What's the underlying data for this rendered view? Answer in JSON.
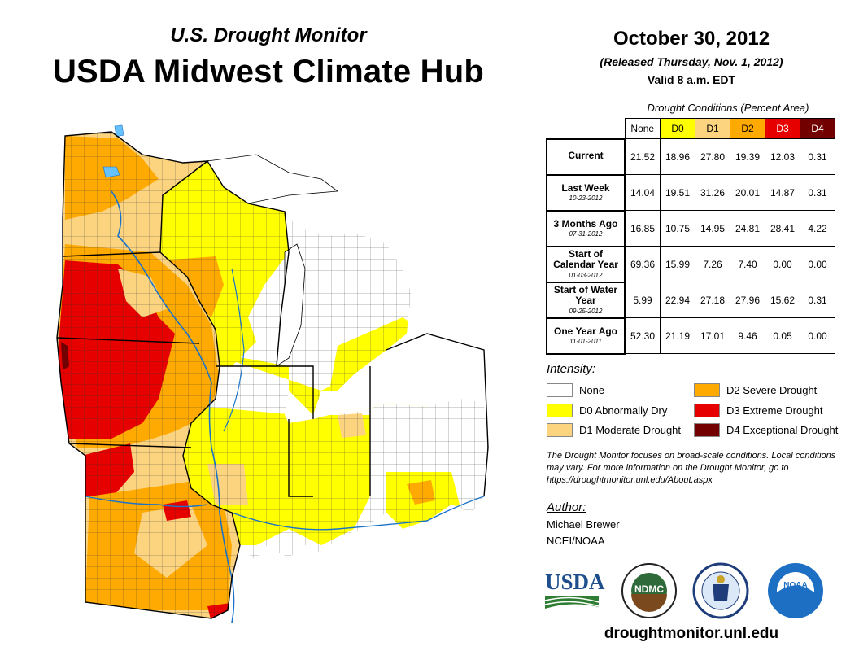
{
  "header": {
    "subtitle": "U.S. Drought Monitor",
    "title": "USDA Midwest Climate Hub",
    "date": "October 30, 2012",
    "released": "(Released Thursday, Nov. 1, 2012)",
    "valid": "Valid 8 a.m. EDT"
  },
  "table": {
    "caption": "Drought Conditions (Percent Area)",
    "columns": [
      "None",
      "D0",
      "D1",
      "D2",
      "D3",
      "D4"
    ],
    "column_colors": [
      "#ffffff",
      "#ffff00",
      "#fcd37f",
      "#ffaa00",
      "#e60000",
      "#730000"
    ],
    "column_text_colors": [
      "#000000",
      "#000000",
      "#000000",
      "#000000",
      "#ffffff",
      "#ffffff"
    ],
    "rows": [
      {
        "label": "Current",
        "date": "",
        "values": [
          "21.52",
          "18.96",
          "27.80",
          "19.39",
          "12.03",
          "0.31"
        ]
      },
      {
        "label": "Last Week",
        "date": "10-23-2012",
        "values": [
          "14.04",
          "19.51",
          "31.26",
          "20.01",
          "14.87",
          "0.31"
        ]
      },
      {
        "label": "3 Months Ago",
        "date": "07-31-2012",
        "values": [
          "16.85",
          "10.75",
          "14.95",
          "24.81",
          "28.41",
          "4.22"
        ]
      },
      {
        "label": "Start of Calendar Year",
        "date": "01-03-2012",
        "values": [
          "69.36",
          "15.99",
          "7.26",
          "7.40",
          "0.00",
          "0.00"
        ]
      },
      {
        "label": "Start of Water Year",
        "date": "09-25-2012",
        "values": [
          "5.99",
          "22.94",
          "27.18",
          "27.96",
          "15.62",
          "0.31"
        ]
      },
      {
        "label": "One Year Ago",
        "date": "11-01-2011",
        "values": [
          "52.30",
          "21.19",
          "17.01",
          "9.46",
          "0.05",
          "0.00"
        ]
      }
    ]
  },
  "legend": {
    "title": "Intensity:",
    "items": [
      {
        "label": "None",
        "color": "#ffffff"
      },
      {
        "label": "D0 Abnormally Dry",
        "color": "#ffff00"
      },
      {
        "label": "D1 Moderate Drought",
        "color": "#fcd37f"
      },
      {
        "label": "D2 Severe Drought",
        "color": "#ffaa00"
      },
      {
        "label": "D3 Extreme Drought",
        "color": "#e60000"
      },
      {
        "label": "D4 Exceptional Drought",
        "color": "#730000"
      }
    ]
  },
  "note": "The Drought Monitor focuses on broad-scale conditions. Local conditions may vary. For more information on the Drought Monitor, go to https://droughtmonitor.unl.edu/About.aspx",
  "author": {
    "title": "Author:",
    "name": "Michael Brewer",
    "org": "NCEI/NOAA"
  },
  "logos": {
    "usda": "USDA",
    "ndmc": "NDMC",
    "noaa": "NOAA"
  },
  "footer": {
    "site": "droughtmonitor.unl.edu"
  },
  "map": {
    "region": "Midwest",
    "icon": "drought-map"
  }
}
